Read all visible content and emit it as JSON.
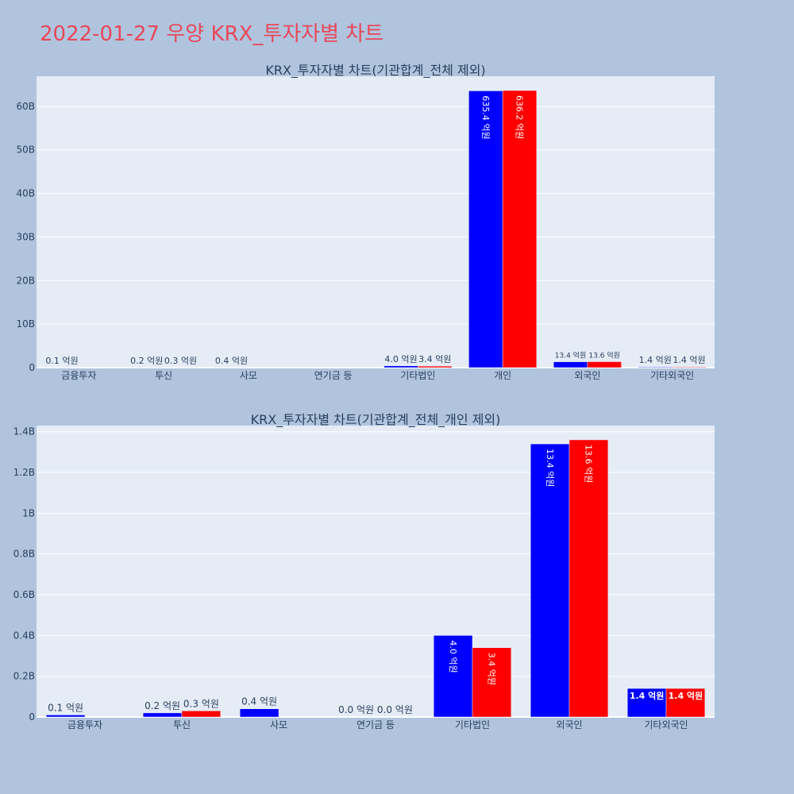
{
  "page_title": "2022-01-27 우양 KRX_투자자별 차트",
  "colors": {
    "sell": "#0000ff",
    "buy": "#ff0000",
    "plot_bg": "#e5ecf6",
    "page_bg": "#b0c4de"
  },
  "chart_data": [
    {
      "type": "bar",
      "title": "KRX_투자자별 차트(기관합계_전체 제외)",
      "categories": [
        "금융투자",
        "투신",
        "사모",
        "연기금 등",
        "기타법인",
        "개인",
        "외국인",
        "기타외국인"
      ],
      "series": [
        {
          "color": "#0000ff",
          "values": [
            10000000,
            20000000,
            40000000,
            0,
            400000000,
            63540000000,
            1340000000,
            140000000
          ],
          "labels": [
            "0.1 억원",
            "0.2 억원",
            "0.4 억원",
            "",
            "4.0 억원",
            "635.4 억원",
            "13.4 억원",
            "1.4 억원"
          ]
        },
        {
          "color": "#ff0000",
          "values": [
            0,
            30000000,
            0,
            0,
            340000000,
            63620000000,
            1360000000,
            140000000
          ],
          "labels": [
            "",
            "0.3 억원",
            "",
            "",
            "3.4 억원",
            "636.2 억원",
            "13.6 억원",
            "1.4 억원"
          ]
        }
      ],
      "yticks": [
        "0",
        "10B",
        "20B",
        "30B",
        "40B",
        "50B",
        "60B"
      ],
      "ytick_values": [
        0,
        10000000000,
        20000000000,
        30000000000,
        40000000000,
        50000000000,
        60000000000
      ],
      "ylim": [
        0,
        66900000000
      ],
      "grid": true
    },
    {
      "type": "bar",
      "title": "KRX_투자자별 차트(기관합계_전체_개인 제외)",
      "categories": [
        "금융투자",
        "투신",
        "사모",
        "연기금 등",
        "기타법인",
        "외국인",
        "기타외국인"
      ],
      "series": [
        {
          "color": "#0000ff",
          "values": [
            10000000,
            20000000,
            40000000,
            0,
            400000000,
            1340000000,
            140000000
          ],
          "labels": [
            "0.1 억원",
            "0.2 억원",
            "0.4 억원",
            "0.0 억원",
            "4.0 억원",
            "13.4 억원",
            "1.4 억원"
          ]
        },
        {
          "color": "#ff0000",
          "values": [
            0,
            30000000,
            0,
            0,
            340000000,
            1360000000,
            140000000
          ],
          "labels": [
            "",
            "0.3 억원",
            "",
            "0.0 억원",
            "3.4 억원",
            "13.6 억원",
            "1.4 억원"
          ]
        }
      ],
      "yticks": [
        "0",
        "0.2B",
        "0.4B",
        "0.6B",
        "0.8B",
        "1B",
        "1.2B",
        "1.4B"
      ],
      "ytick_values": [
        0,
        200000000,
        400000000,
        600000000,
        800000000,
        1000000000,
        1200000000,
        1400000000
      ],
      "ylim": [
        0,
        1430000000
      ],
      "grid": true
    }
  ]
}
